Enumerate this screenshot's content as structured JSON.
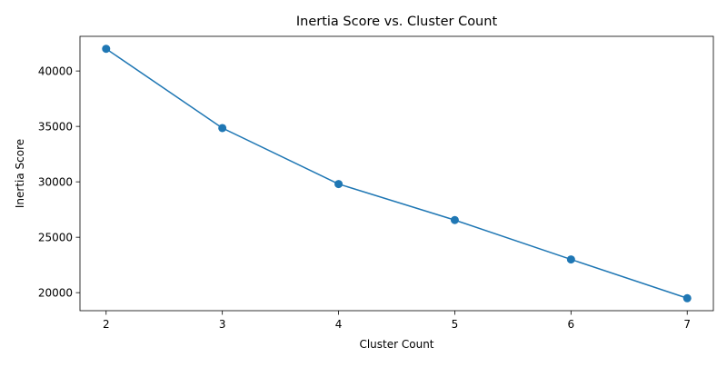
{
  "chart_data": {
    "type": "line",
    "title": "Inertia Score vs. Cluster Count",
    "xlabel": "Cluster Count",
    "ylabel": "Inertia Score",
    "x": [
      2,
      3,
      4,
      5,
      6,
      7
    ],
    "series": [
      {
        "values": [
          42000,
          34850,
          29800,
          26550,
          23000,
          19500
        ],
        "color": "#1f77b4",
        "marker": "circle"
      }
    ],
    "xticks": [
      2,
      3,
      4,
      5,
      6,
      7
    ],
    "yticks": [
      20000,
      25000,
      30000,
      35000,
      40000
    ],
    "xlim": [
      1.775,
      7.225
    ],
    "ylim": [
      18375,
      43125
    ],
    "grid": false,
    "legend": "none"
  }
}
